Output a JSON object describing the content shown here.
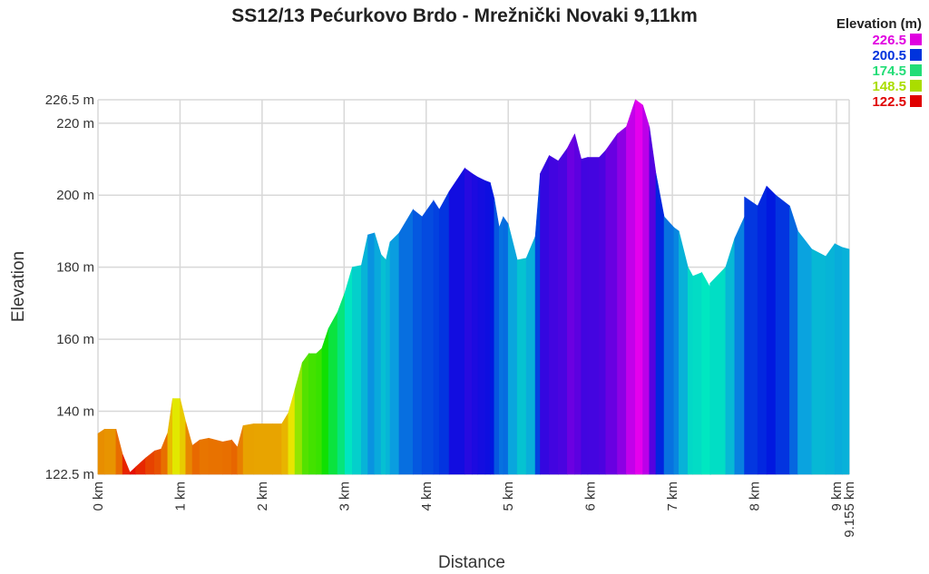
{
  "chart_data": {
    "type": "area",
    "title": "SS12/13 Pećurkovo Brdo - Mrežnički Novaki 9,11km",
    "xlabel": "Distance",
    "ylabel": "Elevation",
    "xlim": [
      0,
      9.155
    ],
    "ylim": [
      122.5,
      226.5
    ],
    "grid": true,
    "x_ticks": [
      {
        "v": 0,
        "label": "0 km"
      },
      {
        "v": 1,
        "label": "1 km"
      },
      {
        "v": 2,
        "label": "2 km"
      },
      {
        "v": 3,
        "label": "3 km"
      },
      {
        "v": 4,
        "label": "4 km"
      },
      {
        "v": 5,
        "label": "5 km"
      },
      {
        "v": 6,
        "label": "6 km"
      },
      {
        "v": 7,
        "label": "7 km"
      },
      {
        "v": 8,
        "label": "8 km"
      },
      {
        "v": 9,
        "label": "9 km"
      },
      {
        "v": 9.155,
        "label": "9.155 km"
      }
    ],
    "y_ticks": [
      {
        "v": 122.5,
        "label": "122.5 m"
      },
      {
        "v": 140,
        "label": "140 m"
      },
      {
        "v": 160,
        "label": "160 m"
      },
      {
        "v": 180,
        "label": "180 m"
      },
      {
        "v": 200,
        "label": "200 m"
      },
      {
        "v": 220,
        "label": "220 m"
      },
      {
        "v": 226.5,
        "label": "226.5 m"
      }
    ],
    "legend": {
      "title": "Elevation (m)",
      "position": "top-right",
      "items": [
        {
          "label": "226.5",
          "color": "#e000e0"
        },
        {
          "label": "200.5",
          "color": "#0033dd"
        },
        {
          "label": "174.5",
          "color": "#22dd77"
        },
        {
          "label": "148.5",
          "color": "#aadd00"
        },
        {
          "label": "122.5",
          "color": "#e00000"
        }
      ]
    },
    "color_stops": [
      [
        122.5,
        "#e60000"
      ],
      [
        134,
        "#e88a00"
      ],
      [
        143,
        "#e8e800"
      ],
      [
        160,
        "#10e000"
      ],
      [
        176,
        "#00e8c0"
      ],
      [
        188,
        "#0aa0e0"
      ],
      [
        202,
        "#0010e0"
      ],
      [
        214,
        "#6000e0"
      ],
      [
        226.5,
        "#ee00ee"
      ]
    ],
    "x": [
      0,
      0.08,
      0.22,
      0.3,
      0.39,
      0.46,
      0.58,
      0.69,
      0.77,
      0.85,
      0.91,
      1.0,
      1.07,
      1.15,
      1.24,
      1.35,
      1.52,
      1.63,
      1.7,
      1.77,
      1.9,
      2.13,
      2.24,
      2.32,
      2.4,
      2.49,
      2.57,
      2.66,
      2.73,
      2.81,
      2.92,
      3.01,
      3.1,
      3.21,
      3.29,
      3.37,
      3.45,
      3.51,
      3.56,
      3.67,
      3.84,
      3.95,
      4.09,
      4.16,
      4.28,
      4.47,
      4.56,
      4.63,
      4.72,
      4.78,
      4.83,
      4.89,
      4.94,
      5.0,
      5.11,
      5.22,
      5.33,
      5.39,
      5.5,
      5.61,
      5.72,
      5.81,
      5.89,
      5.97,
      6.11,
      6.19,
      6.33,
      6.44,
      6.55,
      6.64,
      6.72,
      6.8,
      6.9,
      7.02,
      7.08,
      7.19,
      7.25,
      7.36,
      7.47,
      7.46,
      7.65,
      7.76,
      7.88,
      7.88,
      8.04,
      8.15,
      8.26,
      8.43,
      8.53,
      8.7,
      8.87,
      8.98,
      9.07,
      9.155
    ],
    "y": [
      133.8,
      135,
      135,
      128,
      123,
      124.5,
      127,
      129,
      129.5,
      134,
      143.5,
      143.5,
      137,
      130.5,
      132,
      132.5,
      131.5,
      132,
      130,
      136,
      136.5,
      136.5,
      136.5,
      139.5,
      146,
      153.5,
      156,
      156,
      157.5,
      163,
      167.5,
      173,
      180,
      180.5,
      189,
      189.5,
      183.5,
      182,
      187,
      189.5,
      196,
      194,
      198.5,
      196,
      201,
      207.5,
      206,
      205,
      204,
      203.5,
      199,
      191,
      194,
      192,
      182,
      182.5,
      188.5,
      206,
      211,
      209.5,
      213,
      217,
      210,
      210.5,
      210.5,
      212.5,
      217,
      219,
      226.5,
      225,
      219,
      206,
      194,
      191,
      190,
      180,
      177.5,
      178.5,
      174,
      175.5,
      180,
      188,
      194,
      199.5,
      197,
      202.5,
      200,
      197,
      190,
      185,
      183,
      186.5,
      185.5,
      185
    ]
  }
}
